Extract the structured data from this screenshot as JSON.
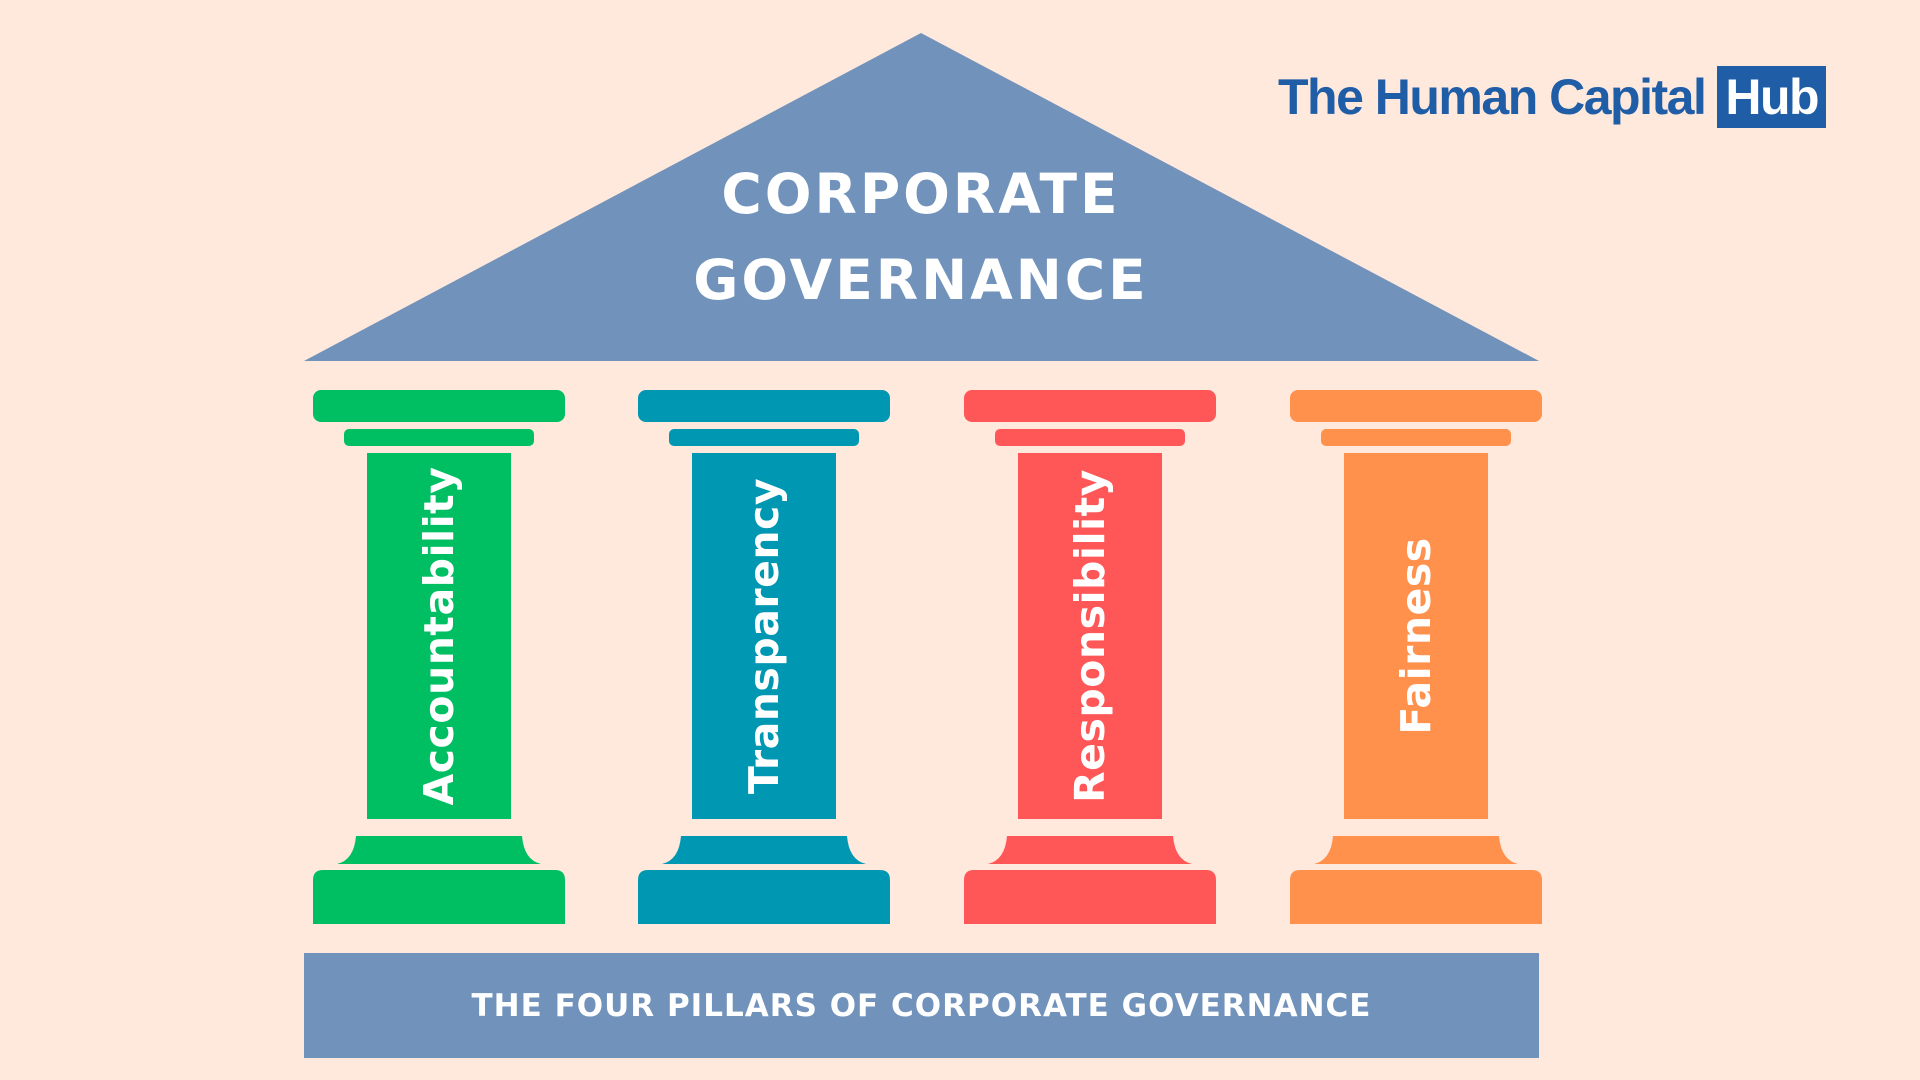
{
  "logo": {
    "text_main": "The Human Capital",
    "text_highlight": "Hub",
    "color": "#1f5da7"
  },
  "roof": {
    "title_line1": "CORPORATE",
    "title_line2": "GOVERNANCE",
    "color": "#7192bb"
  },
  "pillars": [
    {
      "label": "Accountability",
      "color": "#00bf63"
    },
    {
      "label": "Transparency",
      "color": "#0097b2"
    },
    {
      "label": "Responsibility",
      "color": "#ff5757"
    },
    {
      "label": "Fairness",
      "color": "#ff914d"
    }
  ],
  "foundation": {
    "label": "THE FOUR PILLARS OF CORPORATE GOVERNANCE",
    "color": "#7192bb"
  },
  "background": "#ffe8dc"
}
